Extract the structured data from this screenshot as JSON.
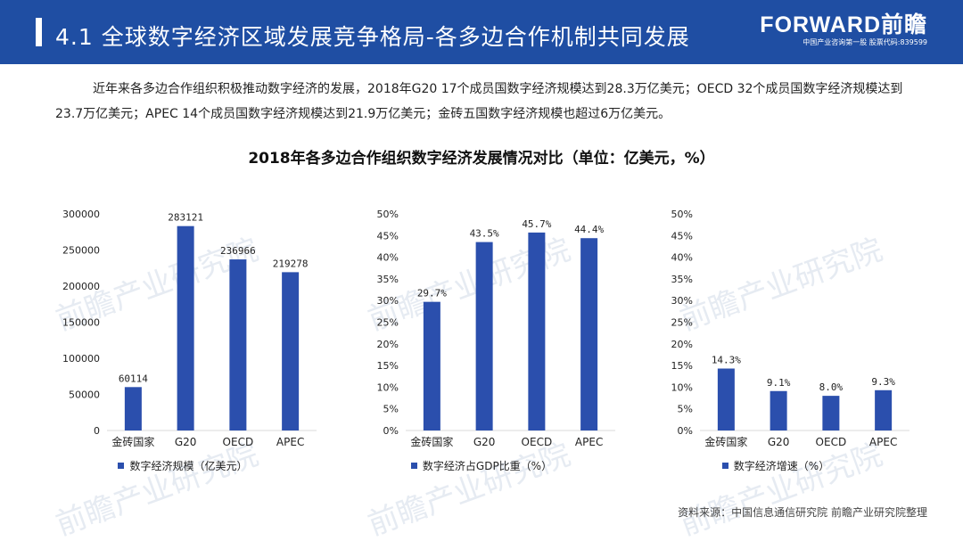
{
  "header": {
    "title": "4.1 全球数字经济区域发展竞争格局-各多边合作机制共同发展",
    "brand_name": "FORWARD前瞻",
    "brand_sub": "中国产业咨询第一股 股票代码:839599"
  },
  "intro_text": "近年来各多边合作组织积极推动数字经济的发展，2018年G20 17个成员国数字经济规模达到28.3万亿美元；OECD 32个成员国数字经济规模达到23.7万亿美元；APEC 14个成员国数字经济规模达到21.9万亿美元；金砖五国数字经济规模也超过6万亿美元。",
  "main_title": "2018年各多边合作组织数字经济发展情况对比（单位：亿美元，%）",
  "source": "资料来源：中国信息通信研究院 前瞻产业研究院整理",
  "watermark": "前瞻产业研究院",
  "colors": {
    "header": "#1f4ea3",
    "bar": "#2b4fad"
  },
  "chart_data": [
    {
      "type": "bar",
      "title": "",
      "categories": [
        "金砖国家",
        "G20",
        "OECD",
        "APEC"
      ],
      "values": [
        60114,
        283121,
        236966,
        219278
      ],
      "value_labels": [
        "60114",
        "283121",
        "236966",
        "219278"
      ],
      "yticks": [
        "0",
        "50000",
        "100000",
        "150000",
        "200000",
        "250000",
        "300000"
      ],
      "ylim": [
        0,
        300000
      ],
      "legend": "数字经济规模（亿美元）",
      "grid": false
    },
    {
      "type": "bar",
      "title": "",
      "categories": [
        "金砖国家",
        "G20",
        "OECD",
        "APEC"
      ],
      "values": [
        29.7,
        43.5,
        45.7,
        44.4
      ],
      "value_labels": [
        "29.7%",
        "43.5%",
        "45.7%",
        "44.4%"
      ],
      "yticks": [
        "0%",
        "5%",
        "10%",
        "15%",
        "20%",
        "25%",
        "30%",
        "35%",
        "40%",
        "45%",
        "50%"
      ],
      "ylim": [
        0,
        50
      ],
      "legend": "数字经济占GDP比重（%）",
      "grid": false
    },
    {
      "type": "bar",
      "title": "",
      "categories": [
        "金砖国家",
        "G20",
        "OECD",
        "APEC"
      ],
      "values": [
        14.3,
        9.1,
        8.0,
        9.3
      ],
      "value_labels": [
        "14.3%",
        "9.1%",
        "8.0%",
        "9.3%"
      ],
      "yticks": [
        "0%",
        "5%",
        "10%",
        "15%",
        "20%",
        "25%",
        "30%",
        "35%",
        "40%",
        "45%",
        "50%"
      ],
      "ylim": [
        0,
        50
      ],
      "legend": "数字经济增速（%）",
      "grid": false
    }
  ]
}
